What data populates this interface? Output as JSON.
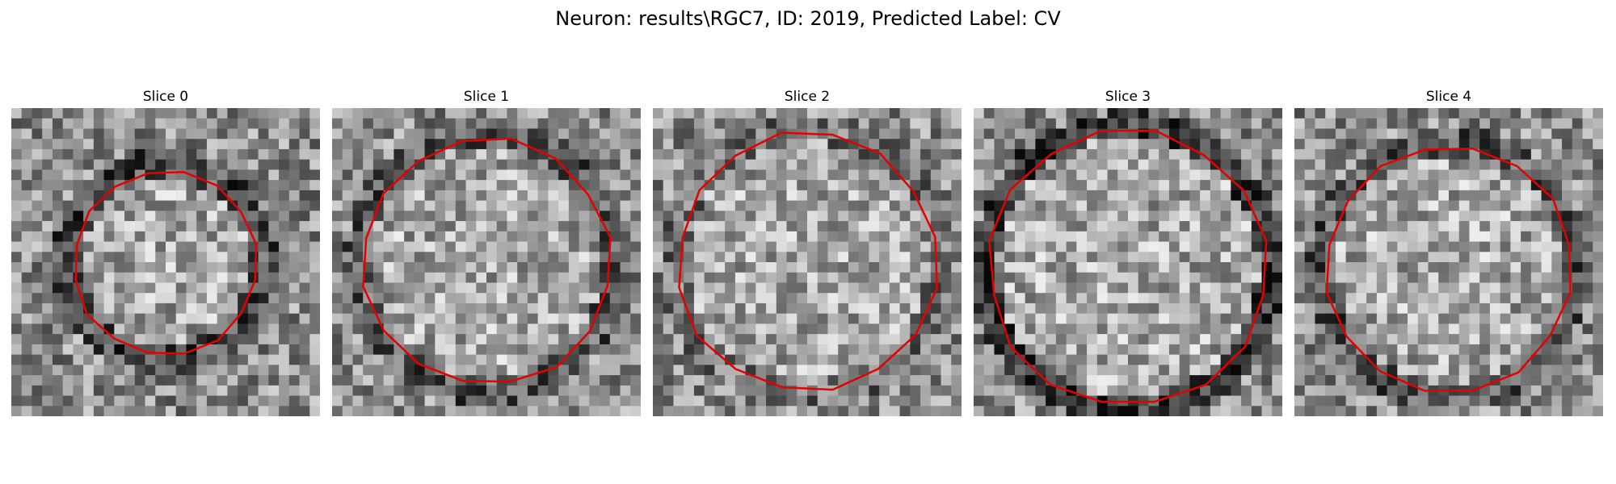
{
  "figure": {
    "title": "Neuron: results\\RGC7, ID: 2019, Predicted Label: CV"
  },
  "colors": {
    "contour": "#e60000",
    "background": "#ffffff"
  },
  "panels": [
    {
      "title": "Slice 0",
      "cell_radius": 0.3
    },
    {
      "title": "Slice 1",
      "cell_radius": 0.4
    },
    {
      "title": "Slice 2",
      "cell_radius": 0.42
    },
    {
      "title": "Slice 3",
      "cell_radius": 0.45
    },
    {
      "title": "Slice 4",
      "cell_radius": 0.4
    }
  ]
}
